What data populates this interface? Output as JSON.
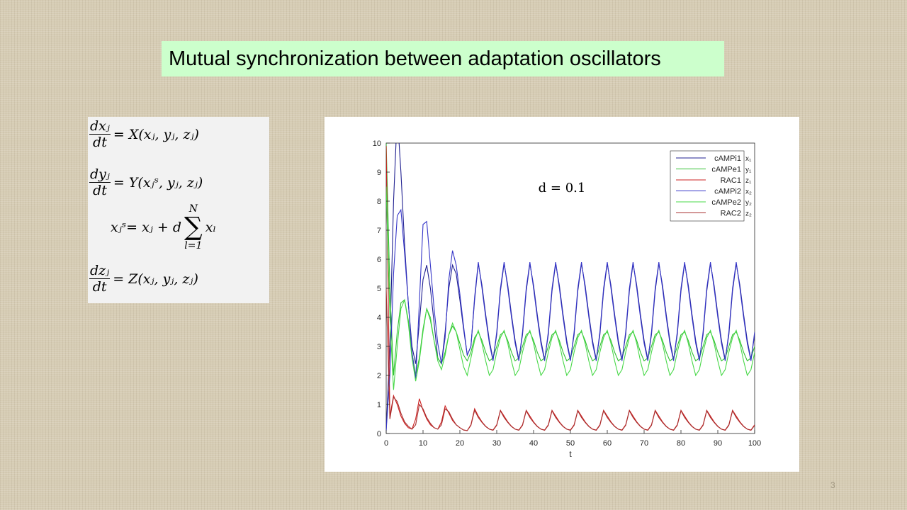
{
  "title": "Mutual synchronization between adaptation oscillators",
  "page_number": "3",
  "equations": [
    {
      "num": "dxⱼ",
      "den": "dt",
      "rhs": "= X(xⱼ, yⱼ, zⱼ)"
    },
    {
      "num": "dyⱼ",
      "den": "dt",
      "rhs": "= Y(xⱼˢ, yⱼ, zⱼ)"
    },
    {
      "lhs": "xⱼˢ= xⱼ + d",
      "sum": "∑",
      "sum_top": "N",
      "sum_bottom": "l=1",
      "rhs": "xₗ"
    },
    {
      "num": "dzⱼ",
      "den": "dt",
      "rhs": "= Z(xⱼ, yⱼ, zⱼ)"
    }
  ],
  "chart_data": {
    "type": "line",
    "xlabel": "t",
    "annotation": "d = 0.1",
    "legend": "top-right",
    "legend_side_labels": [
      "x₁",
      "y₁",
      "z₁",
      "x₂",
      "y₂",
      "z₂"
    ],
    "xlim": [
      0,
      100
    ],
    "xticks": [
      0,
      10,
      20,
      30,
      40,
      50,
      60,
      70,
      80,
      90,
      100
    ],
    "ylim": [
      0,
      10
    ],
    "yticks": [
      0,
      1,
      2,
      3,
      4,
      5,
      6,
      7,
      8,
      9,
      10
    ],
    "grid": false,
    "x": [
      0,
      1,
      2,
      3,
      4,
      5,
      6,
      7,
      8,
      9,
      10,
      11,
      12,
      13,
      14,
      15,
      16,
      17,
      18,
      19,
      20,
      21,
      22,
      23,
      24,
      25,
      26,
      27,
      28,
      29,
      30,
      31,
      32,
      33,
      34,
      35,
      36,
      37,
      38,
      39,
      40,
      41,
      42,
      43,
      44,
      45,
      46,
      47,
      48,
      49,
      50,
      51,
      52,
      53,
      54,
      55,
      56,
      57,
      58,
      59,
      60,
      61,
      62,
      63,
      64,
      65,
      66,
      67,
      68,
      69,
      70,
      71,
      72,
      73,
      74,
      75,
      76,
      77,
      78,
      79,
      80,
      81,
      82,
      83,
      84,
      85,
      86,
      87,
      88,
      89,
      90,
      91,
      92,
      93,
      94,
      95,
      96,
      97,
      98,
      99,
      100
    ],
    "series": [
      {
        "name": "cAMPi1",
        "color": "#202090",
        "values": [
          0.1,
          3,
          8,
          11,
          9,
          6.5,
          4.5,
          3,
          2.4,
          3.8,
          5.3,
          5.8,
          5,
          3.8,
          2.6,
          2.4,
          3.5,
          5,
          5.8,
          5.5,
          4.6,
          3.6,
          2.7,
          3.0,
          4.6,
          5.85,
          5.1,
          4.1,
          3.2,
          2.55,
          3.4,
          4.9,
          5.85,
          5.1,
          4.1,
          3.2,
          2.55,
          3.4,
          4.9,
          5.85,
          5.1,
          4.1,
          3.2,
          2.55,
          3.4,
          4.9,
          5.85,
          5.1,
          4.1,
          3.2,
          2.55,
          3.4,
          4.9,
          5.85,
          5.1,
          4.1,
          3.2,
          2.55,
          3.4,
          4.9,
          5.85,
          5.1,
          4.1,
          3.2,
          2.55,
          3.4,
          4.9,
          5.85,
          5.1,
          4.1,
          3.2,
          2.55,
          3.4,
          4.9,
          5.85,
          5.1,
          4.1,
          3.2,
          2.55,
          3.4,
          4.9,
          5.85,
          5.1,
          4.1,
          3.2,
          2.55,
          3.4,
          4.9,
          5.85,
          5.1,
          4.1,
          3.2,
          2.55,
          3.4,
          4.9,
          5.85,
          5.1,
          4.1,
          3.2,
          2.55,
          3.4
        ]
      },
      {
        "name": "cAMPe1",
        "color": "#30c030",
        "values": [
          10,
          5,
          2,
          3.5,
          4.5,
          4.6,
          3.9,
          2.8,
          2.0,
          2.6,
          3.6,
          4.3,
          3.9,
          3.2,
          2.6,
          2.4,
          2.8,
          3.4,
          3.7,
          3.5,
          3.1,
          2.7,
          2.5,
          2.8,
          3.3,
          3.5,
          3.2,
          2.8,
          2.5,
          2.6,
          3.0,
          3.4,
          3.5,
          3.2,
          2.8,
          2.5,
          2.6,
          3.0,
          3.4,
          3.5,
          3.2,
          2.8,
          2.5,
          2.6,
          3.0,
          3.4,
          3.5,
          3.2,
          2.8,
          2.5,
          2.6,
          3.0,
          3.4,
          3.5,
          3.2,
          2.8,
          2.5,
          2.6,
          3.0,
          3.4,
          3.5,
          3.2,
          2.8,
          2.5,
          2.6,
          3.0,
          3.4,
          3.5,
          3.2,
          2.8,
          2.5,
          2.6,
          3.0,
          3.4,
          3.5,
          3.2,
          2.8,
          2.5,
          2.6,
          3.0,
          3.4,
          3.5,
          3.2,
          2.8,
          2.5,
          2.6,
          3.0,
          3.4,
          3.5,
          3.2,
          2.8,
          2.5,
          2.6,
          3.0,
          3.4,
          3.5,
          3.2,
          2.8,
          2.5,
          2.6,
          3.0
        ]
      },
      {
        "name": "RAC1",
        "color": "#cc2020",
        "values": [
          9.9,
          0.6,
          1.3,
          1.0,
          0.6,
          0.35,
          0.2,
          0.15,
          0.5,
          1.2,
          0.8,
          0.5,
          0.3,
          0.2,
          0.15,
          0.4,
          0.95,
          0.7,
          0.45,
          0.3,
          0.2,
          0.12,
          0.1,
          0.3,
          0.85,
          0.6,
          0.4,
          0.25,
          0.15,
          0.12,
          0.3,
          0.8,
          0.6,
          0.4,
          0.25,
          0.15,
          0.12,
          0.3,
          0.8,
          0.6,
          0.4,
          0.25,
          0.15,
          0.12,
          0.3,
          0.8,
          0.6,
          0.4,
          0.25,
          0.15,
          0.12,
          0.3,
          0.8,
          0.6,
          0.4,
          0.25,
          0.15,
          0.12,
          0.3,
          0.8,
          0.6,
          0.4,
          0.25,
          0.15,
          0.12,
          0.3,
          0.8,
          0.6,
          0.4,
          0.25,
          0.15,
          0.12,
          0.3,
          0.8,
          0.6,
          0.4,
          0.25,
          0.15,
          0.12,
          0.3,
          0.8,
          0.6,
          0.4,
          0.25,
          0.15,
          0.12,
          0.3,
          0.8,
          0.6,
          0.4,
          0.25,
          0.15,
          0.12,
          0.3,
          0.8,
          0.6,
          0.4,
          0.25,
          0.15,
          0.12,
          0.3
        ]
      },
      {
        "name": "cAMPi2",
        "color": "#3535c8",
        "values": [
          0.1,
          2,
          5.5,
          7.5,
          7.7,
          6.2,
          4.5,
          2.8,
          1.85,
          4.5,
          7.2,
          7.3,
          5.8,
          4.3,
          3.1,
          2.4,
          3.3,
          5.3,
          6.3,
          5.8,
          4.8,
          3.7,
          2.7,
          3.0,
          4.7,
          5.9,
          5.0,
          4.0,
          3.1,
          2.5,
          3.5,
          5.0,
          5.9,
          5.0,
          4.0,
          3.1,
          2.5,
          3.5,
          5.0,
          5.9,
          5.0,
          4.0,
          3.1,
          2.5,
          3.5,
          5.0,
          5.9,
          5.0,
          4.0,
          3.1,
          2.5,
          3.5,
          5.0,
          5.9,
          5.0,
          4.0,
          3.1,
          2.5,
          3.5,
          5.0,
          5.9,
          5.0,
          4.0,
          3.1,
          2.5,
          3.5,
          5.0,
          5.9,
          5.0,
          4.0,
          3.1,
          2.5,
          3.5,
          5.0,
          5.9,
          5.0,
          4.0,
          3.1,
          2.5,
          3.5,
          5.0,
          5.9,
          5.0,
          4.0,
          3.1,
          2.5,
          3.5,
          5.0,
          5.9,
          5.0,
          4.0,
          3.1,
          2.5,
          3.5,
          5.0,
          5.9,
          5.0,
          4.0,
          3.1,
          2.5,
          3.5
        ]
      },
      {
        "name": "cAMPe2",
        "color": "#48d848",
        "values": [
          8.5,
          4,
          1.5,
          3,
          4.3,
          4.6,
          3.8,
          2.6,
          1.8,
          2.5,
          3.5,
          4.3,
          4.0,
          3.2,
          2.5,
          2.2,
          2.7,
          3.4,
          3.8,
          3.5,
          2.9,
          2.3,
          2.0,
          2.6,
          3.2,
          3.55,
          3.1,
          2.5,
          2.0,
          2.2,
          2.8,
          3.3,
          3.55,
          3.1,
          2.5,
          2.0,
          2.2,
          2.8,
          3.3,
          3.55,
          3.1,
          2.5,
          2.0,
          2.2,
          2.8,
          3.3,
          3.55,
          3.1,
          2.5,
          2.0,
          2.2,
          2.8,
          3.3,
          3.55,
          3.1,
          2.5,
          2.0,
          2.2,
          2.8,
          3.3,
          3.55,
          3.1,
          2.5,
          2.0,
          2.2,
          2.8,
          3.3,
          3.55,
          3.1,
          2.5,
          2.0,
          2.2,
          2.8,
          3.3,
          3.55,
          3.1,
          2.5,
          2.0,
          2.2,
          2.8,
          3.3,
          3.55,
          3.1,
          2.5,
          2.0,
          2.2,
          2.8,
          3.3,
          3.55,
          3.1,
          2.5,
          2.0,
          2.2,
          2.8,
          3.3,
          3.55,
          3.1,
          2.5,
          2.0,
          2.2,
          2.8
        ]
      },
      {
        "name": "RAC2",
        "color": "#a83030",
        "values": [
          5,
          0.5,
          1.25,
          1.1,
          0.7,
          0.4,
          0.25,
          0.15,
          0.3,
          1.0,
          0.85,
          0.55,
          0.35,
          0.2,
          0.15,
          0.3,
          0.85,
          0.75,
          0.5,
          0.3,
          0.2,
          0.12,
          0.1,
          0.28,
          0.8,
          0.55,
          0.38,
          0.24,
          0.15,
          0.11,
          0.28,
          0.78,
          0.55,
          0.38,
          0.24,
          0.15,
          0.11,
          0.28,
          0.78,
          0.55,
          0.38,
          0.24,
          0.15,
          0.11,
          0.28,
          0.78,
          0.55,
          0.38,
          0.24,
          0.15,
          0.11,
          0.28,
          0.78,
          0.55,
          0.38,
          0.24,
          0.15,
          0.11,
          0.28,
          0.78,
          0.55,
          0.38,
          0.24,
          0.15,
          0.11,
          0.28,
          0.78,
          0.55,
          0.38,
          0.24,
          0.15,
          0.11,
          0.28,
          0.78,
          0.55,
          0.38,
          0.24,
          0.15,
          0.11,
          0.28,
          0.78,
          0.55,
          0.38,
          0.24,
          0.15,
          0.11,
          0.28,
          0.78,
          0.55,
          0.38,
          0.24,
          0.15,
          0.11,
          0.28,
          0.78,
          0.55,
          0.38,
          0.24,
          0.15,
          0.11,
          0.28
        ]
      }
    ]
  }
}
